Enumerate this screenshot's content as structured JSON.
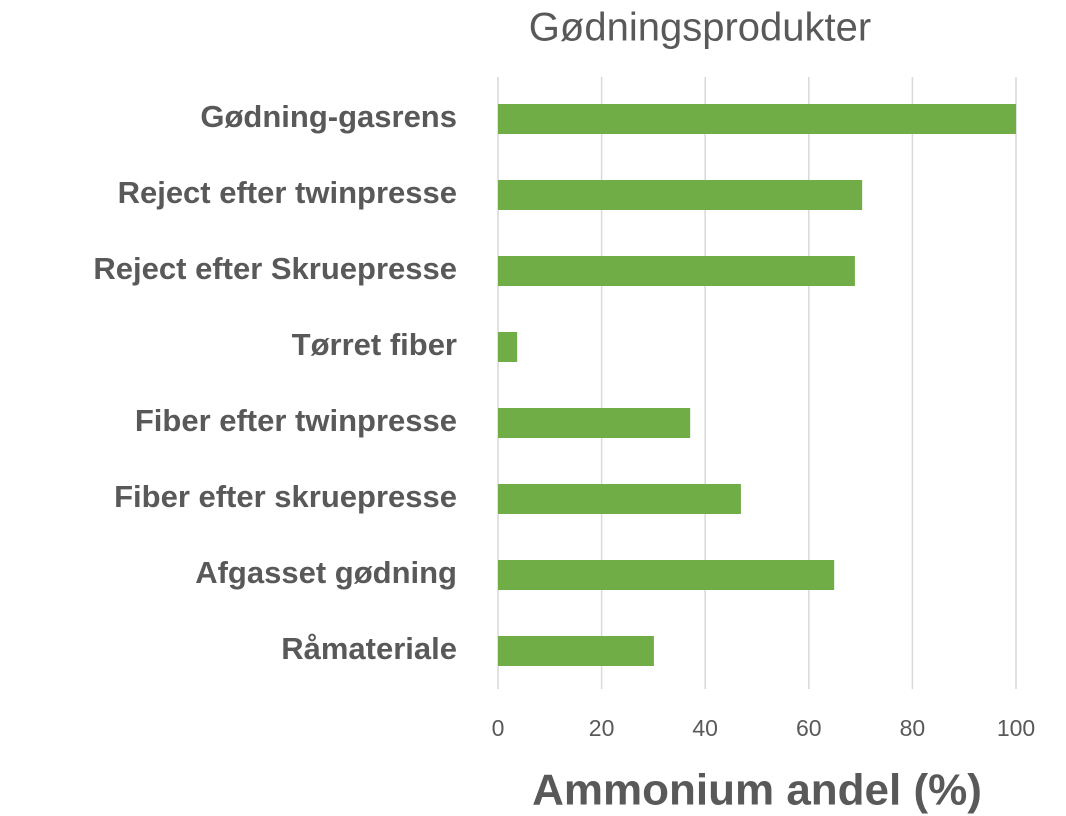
{
  "chart_data": {
    "type": "bar",
    "orientation": "horizontal",
    "title": "Gødningsprodukter",
    "x_label": "Ammonium andel (%)",
    "categories": [
      "Gødning-gasrens",
      "Reject efter twinpresse",
      "Reject efter Skruepresse",
      "Tørret fiber",
      "Fiber efter twinpresse",
      "Fiber efter skruepresse",
      "Afgasset gødning",
      "Råmateriale"
    ],
    "values": [
      100,
      70.3,
      68.9,
      3.7,
      37.1,
      46.9,
      64.9,
      30.1
    ],
    "color": "#70ad47",
    "xlim": [
      0,
      100
    ],
    "xticks": [
      0,
      20,
      40,
      60,
      80,
      100
    ],
    "grid": true
  }
}
